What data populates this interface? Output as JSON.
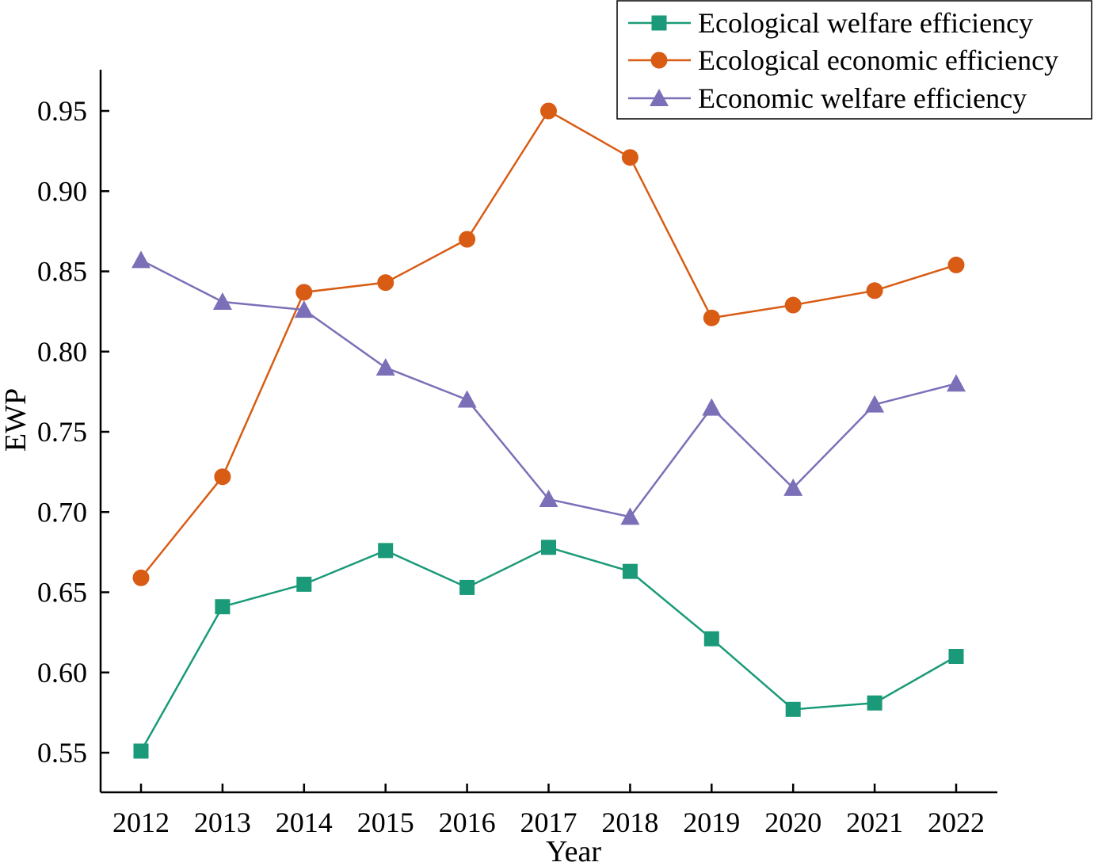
{
  "chart_data": {
    "type": "line",
    "xlabel": "Year",
    "ylabel": "EWP",
    "categories": [
      "2012",
      "2013",
      "2014",
      "2015",
      "2016",
      "2017",
      "2018",
      "2019",
      "2020",
      "2021",
      "2022"
    ],
    "ylim": [
      0.535,
      0.975
    ],
    "yticks": [
      0.55,
      0.6,
      0.65,
      0.7,
      0.75,
      0.8,
      0.85,
      0.9,
      0.95
    ],
    "ytick_labels": [
      "0.55",
      "0.60",
      "0.65",
      "0.70",
      "0.75",
      "0.80",
      "0.85",
      "0.90",
      "0.95"
    ],
    "legend_position": "top-right",
    "series": [
      {
        "name": "Ecological welfare efficiency",
        "marker": "square",
        "color": "#1a9a78",
        "values": [
          0.551,
          0.641,
          0.655,
          0.676,
          0.653,
          0.678,
          0.663,
          0.621,
          0.577,
          0.581,
          0.61
        ]
      },
      {
        "name": "Ecological economic efficiency",
        "marker": "circle",
        "color": "#d85c14",
        "values": [
          0.659,
          0.722,
          0.837,
          0.843,
          0.87,
          0.95,
          0.921,
          0.821,
          0.829,
          0.838,
          0.854
        ]
      },
      {
        "name": "Economic welfare efficiency",
        "marker": "triangle",
        "color": "#7b70b8",
        "values": [
          0.857,
          0.831,
          0.826,
          0.79,
          0.77,
          0.708,
          0.697,
          0.765,
          0.715,
          0.767,
          0.78
        ]
      }
    ]
  }
}
